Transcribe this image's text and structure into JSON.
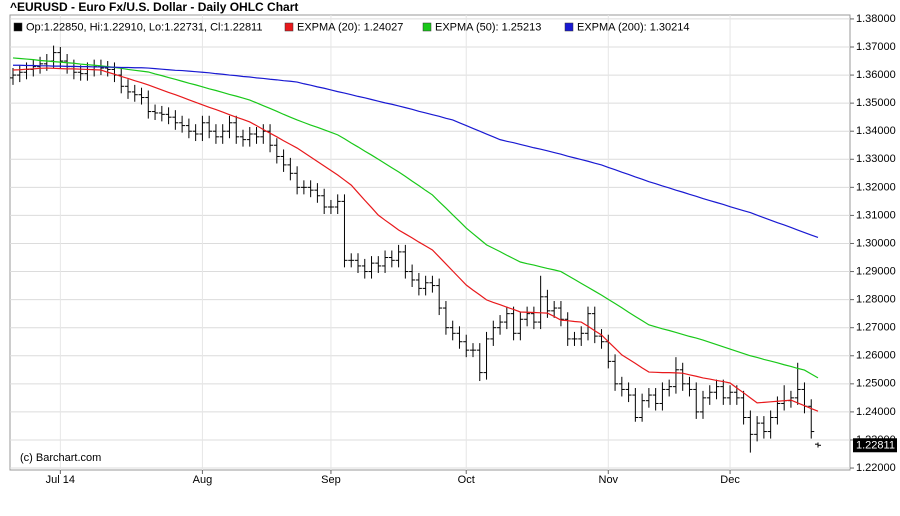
{
  "chart_data": {
    "type": "ohlc",
    "title": "^EURUSD - Euro Fx/U.S. Dollar - Daily OHLC Chart",
    "credit": "(c) Barchart.com",
    "last_label": "1.22811",
    "grid": true,
    "ylim": [
      1.2193,
      1.3814
    ],
    "yticks": [
      {
        "value": 1.22,
        "label": "1.22000"
      },
      {
        "value": 1.23,
        "label": "1.23000"
      },
      {
        "value": 1.24,
        "label": "1.24000"
      },
      {
        "value": 1.25,
        "label": "1.25000"
      },
      {
        "value": 1.26,
        "label": "1.26000"
      },
      {
        "value": 1.27,
        "label": "1.27000"
      },
      {
        "value": 1.28,
        "label": "1.28000"
      },
      {
        "value": 1.29,
        "label": "1.29000"
      },
      {
        "value": 1.3,
        "label": "1.30000"
      },
      {
        "value": 1.31,
        "label": "1.31000"
      },
      {
        "value": 1.32,
        "label": "1.32000"
      },
      {
        "value": 1.33,
        "label": "1.33000"
      },
      {
        "value": 1.34,
        "label": "1.34000"
      },
      {
        "value": 1.35,
        "label": "1.35000"
      },
      {
        "value": 1.36,
        "label": "1.36000"
      },
      {
        "value": 1.37,
        "label": "1.37000"
      },
      {
        "value": 1.38,
        "label": "1.38000"
      }
    ],
    "categories": [
      null,
      null,
      null,
      null,
      null,
      null,
      null,
      "Jul 14",
      null,
      null,
      null,
      null,
      null,
      null,
      null,
      null,
      null,
      null,
      null,
      null,
      null,
      null,
      null,
      null,
      null,
      null,
      null,
      null,
      "Aug",
      null,
      null,
      null,
      null,
      null,
      null,
      null,
      null,
      null,
      null,
      null,
      null,
      null,
      null,
      null,
      null,
      null,
      null,
      "Sep",
      null,
      null,
      null,
      null,
      null,
      null,
      null,
      null,
      null,
      null,
      null,
      null,
      null,
      null,
      null,
      null,
      null,
      null,
      null,
      "Oct",
      null,
      null,
      null,
      null,
      null,
      null,
      null,
      null,
      null,
      null,
      null,
      null,
      null,
      null,
      null,
      null,
      null,
      null,
      null,
      null,
      "Nov",
      null,
      null,
      null,
      null,
      null,
      null,
      null,
      null,
      null,
      null,
      null,
      null,
      null,
      null,
      null,
      null,
      null,
      "Dec",
      null,
      null,
      null,
      null,
      null,
      null,
      null,
      null,
      null,
      null,
      null,
      null,
      null
    ],
    "ohlc": {
      "name": "Op:1.22850, Hi:1.22910, Lo:1.22731, Cl:1.22811",
      "color": "#000000",
      "open": [
        1.359,
        1.36,
        1.361,
        1.362,
        1.363,
        1.364,
        1.365,
        1.368,
        1.365,
        1.363,
        1.361,
        1.3605,
        1.362,
        1.363,
        1.3625,
        1.362,
        1.36,
        1.356,
        1.354,
        1.353,
        1.352,
        1.347,
        1.3465,
        1.346,
        1.345,
        1.343,
        1.342,
        1.34,
        1.339,
        1.343,
        1.34,
        1.338,
        1.34,
        1.343,
        1.338,
        1.337,
        1.339,
        1.338,
        1.34,
        1.335,
        1.331,
        1.328,
        1.325,
        1.32,
        1.32,
        1.319,
        1.317,
        1.313,
        1.313,
        1.315,
        1.294,
        1.294,
        1.292,
        1.29,
        1.293,
        1.292,
        1.295,
        1.294,
        1.297,
        1.29,
        1.287,
        1.284,
        1.286,
        1.285,
        1.277,
        1.27,
        1.268,
        1.265,
        1.262,
        1.262,
        1.254,
        1.266,
        1.27,
        1.272,
        1.275,
        1.268,
        1.273,
        1.275,
        1.272,
        1.281,
        1.276,
        1.277,
        1.273,
        1.266,
        1.266,
        1.268,
        1.275,
        1.267,
        1.265,
        1.258,
        1.25,
        1.248,
        1.246,
        1.238,
        1.244,
        1.246,
        1.243,
        1.248,
        1.249,
        1.255,
        1.25,
        1.248,
        1.24,
        1.245,
        1.247,
        1.249,
        1.245,
        1.247,
        1.245,
        1.238,
        1.232,
        1.236,
        1.233,
        1.238,
        1.243,
        1.244,
        1.245,
        1.248,
        1.242,
        1.2285
      ],
      "high": [
        1.3625,
        1.3635,
        1.3645,
        1.3655,
        1.3665,
        1.3675,
        1.3705,
        1.37,
        1.3675,
        1.3655,
        1.3635,
        1.3645,
        1.3655,
        1.3655,
        1.365,
        1.3645,
        1.3625,
        1.3585,
        1.3565,
        1.3555,
        1.3545,
        1.3495,
        1.349,
        1.3485,
        1.3475,
        1.3455,
        1.3445,
        1.3425,
        1.3455,
        1.3455,
        1.3425,
        1.3425,
        1.3455,
        1.3455,
        1.3405,
        1.3415,
        1.3415,
        1.3425,
        1.3425,
        1.3375,
        1.3335,
        1.3305,
        1.3275,
        1.3225,
        1.3225,
        1.3215,
        1.3195,
        1.3155,
        1.3175,
        1.3175,
        1.2965,
        1.2965,
        1.2945,
        1.2955,
        1.2955,
        1.2975,
        1.2975,
        1.2995,
        1.2995,
        1.2925,
        1.2895,
        1.2885,
        1.2885,
        1.2875,
        1.2795,
        1.2725,
        1.2705,
        1.2675,
        1.2645,
        1.2645,
        1.2685,
        1.2725,
        1.2745,
        1.2775,
        1.2775,
        1.2755,
        1.2775,
        1.2775,
        1.2885,
        1.2835,
        1.2795,
        1.2795,
        1.2755,
        1.2685,
        1.2705,
        1.2775,
        1.2775,
        1.2695,
        1.2675,
        1.2605,
        1.2525,
        1.2505,
        1.2485,
        1.2465,
        1.2485,
        1.2485,
        1.2505,
        1.2515,
        1.2595,
        1.2575,
        1.2525,
        1.2505,
        1.2475,
        1.2495,
        1.2515,
        1.2515,
        1.2495,
        1.2495,
        1.2475,
        1.2405,
        1.2385,
        1.2385,
        1.2405,
        1.2455,
        1.2495,
        1.2475,
        1.2575,
        1.2505,
        1.2445,
        1.2291
      ],
      "low": [
        1.3565,
        1.3575,
        1.3585,
        1.3595,
        1.3605,
        1.3615,
        1.3625,
        1.3625,
        1.3605,
        1.3585,
        1.358,
        1.358,
        1.3595,
        1.36,
        1.3595,
        1.3575,
        1.3535,
        1.3515,
        1.3505,
        1.3495,
        1.3445,
        1.344,
        1.3435,
        1.3425,
        1.3405,
        1.3395,
        1.3375,
        1.3365,
        1.3365,
        1.3375,
        1.3355,
        1.3355,
        1.3375,
        1.3355,
        1.3345,
        1.3345,
        1.3355,
        1.3355,
        1.3325,
        1.3285,
        1.3255,
        1.3225,
        1.3175,
        1.3175,
        1.3165,
        1.3145,
        1.3105,
        1.3105,
        1.3105,
        1.2915,
        1.2915,
        1.2895,
        1.2875,
        1.2875,
        1.2895,
        1.2895,
        1.2915,
        1.2915,
        1.2875,
        1.2845,
        1.2815,
        1.2815,
        1.2825,
        1.2745,
        1.2675,
        1.2655,
        1.2625,
        1.2595,
        1.2595,
        1.251,
        1.2515,
        1.2635,
        1.2675,
        1.2695,
        1.2655,
        1.2655,
        1.2705,
        1.2695,
        1.2695,
        1.2735,
        1.2735,
        1.2705,
        1.2635,
        1.2635,
        1.2635,
        1.2655,
        1.2645,
        1.2625,
        1.2555,
        1.2475,
        1.2455,
        1.2435,
        1.2365,
        1.2365,
        1.2415,
        1.2405,
        1.2405,
        1.2455,
        1.2465,
        1.2475,
        1.2455,
        1.2375,
        1.2375,
        1.2425,
        1.2445,
        1.2425,
        1.2425,
        1.2425,
        1.2355,
        1.2255,
        1.2295,
        1.2305,
        1.2305,
        1.2355,
        1.2405,
        1.2415,
        1.2425,
        1.2395,
        1.2305,
        1.22731
      ],
      "close": [
        1.36,
        1.361,
        1.362,
        1.363,
        1.364,
        1.365,
        1.368,
        1.365,
        1.363,
        1.361,
        1.3605,
        1.362,
        1.363,
        1.3625,
        1.362,
        1.36,
        1.356,
        1.354,
        1.353,
        1.352,
        1.347,
        1.3465,
        1.346,
        1.345,
        1.343,
        1.342,
        1.34,
        1.339,
        1.343,
        1.34,
        1.338,
        1.34,
        1.343,
        1.338,
        1.337,
        1.339,
        1.338,
        1.34,
        1.335,
        1.331,
        1.328,
        1.325,
        1.32,
        1.32,
        1.319,
        1.317,
        1.313,
        1.313,
        1.315,
        1.294,
        1.294,
        1.292,
        1.29,
        1.293,
        1.292,
        1.295,
        1.294,
        1.297,
        1.29,
        1.287,
        1.284,
        1.286,
        1.285,
        1.277,
        1.27,
        1.268,
        1.265,
        1.262,
        1.262,
        1.254,
        1.266,
        1.27,
        1.272,
        1.275,
        1.268,
        1.273,
        1.275,
        1.272,
        1.281,
        1.276,
        1.277,
        1.273,
        1.266,
        1.266,
        1.268,
        1.275,
        1.267,
        1.265,
        1.258,
        1.25,
        1.248,
        1.246,
        1.238,
        1.244,
        1.246,
        1.243,
        1.248,
        1.249,
        1.255,
        1.25,
        1.248,
        1.24,
        1.245,
        1.247,
        1.249,
        1.245,
        1.247,
        1.245,
        1.238,
        1.232,
        1.236,
        1.233,
        1.238,
        1.243,
        1.244,
        1.245,
        1.248,
        1.242,
        1.233,
        1.22811
      ]
    },
    "series": [
      {
        "name": "EXPMA (20): 1.24027",
        "color": "#e8191c",
        "values": [
          1.3618,
          1.3619,
          1.3621,
          1.3622,
          1.3624,
          1.3625,
          1.3624,
          1.3623,
          1.3622,
          1.3622,
          1.3621,
          1.362,
          1.3619,
          1.3618,
          1.361,
          1.3603,
          1.3595,
          1.3588,
          1.358,
          1.3573,
          1.3565,
          1.3556,
          1.3547,
          1.3538,
          1.353,
          1.3521,
          1.3512,
          1.3503,
          1.3494,
          1.3485,
          1.3477,
          1.3468,
          1.3459,
          1.345,
          1.3442,
          1.3433,
          1.342,
          1.3406,
          1.3393,
          1.338,
          1.3366,
          1.3353,
          1.334,
          1.3324,
          1.3308,
          1.3292,
          1.3276,
          1.326,
          1.3244,
          1.3226,
          1.3208,
          1.3181,
          1.3154,
          1.3128,
          1.3101,
          1.3083,
          1.3066,
          1.3048,
          1.3034,
          1.302,
          1.3005,
          1.2991,
          1.2977,
          1.2952,
          1.2927,
          1.2902,
          1.2877,
          1.2852,
          1.2834,
          1.2817,
          1.2799,
          1.279,
          1.2782,
          1.2773,
          1.2765,
          1.2756,
          1.2755,
          1.2754,
          1.2753,
          1.2752,
          1.274,
          1.2727,
          1.2725,
          1.2722,
          1.272,
          1.2705,
          1.2689,
          1.2674,
          1.265,
          1.2627,
          1.2603,
          1.2588,
          1.2573,
          1.2557,
          1.2542,
          1.2541,
          1.254,
          1.254,
          1.2539,
          1.2538,
          1.2532,
          1.2527,
          1.2521,
          1.2517,
          1.2512,
          1.2508,
          1.2503,
          1.2485,
          1.2468,
          1.245,
          1.2432,
          1.2434,
          1.2436,
          1.2438,
          1.244,
          1.2442,
          1.2432,
          1.2422,
          1.2412,
          1.24027
        ]
      },
      {
        "name": "EXPMA (50): 1.25213",
        "color": "#19c819",
        "values": [
          1.3661,
          1.3659,
          1.3657,
          1.3655,
          1.3652,
          1.365,
          1.3648,
          1.3646,
          1.3644,
          1.3642,
          1.3639,
          1.3637,
          1.3635,
          1.3633,
          1.363,
          1.3627,
          1.3624,
          1.362,
          1.3617,
          1.3614,
          1.3611,
          1.3604,
          1.3598,
          1.3591,
          1.3585,
          1.3578,
          1.3571,
          1.3565,
          1.3558,
          1.3551,
          1.3545,
          1.3538,
          1.3531,
          1.3525,
          1.3518,
          1.3511,
          1.3501,
          1.3491,
          1.3481,
          1.3471,
          1.346,
          1.345,
          1.344,
          1.3431,
          1.3422,
          1.3414,
          1.3405,
          1.3396,
          1.3387,
          1.3373,
          1.3358,
          1.3344,
          1.3329,
          1.3315,
          1.33,
          1.3285,
          1.327,
          1.3255,
          1.3239,
          1.3222,
          1.3206,
          1.3189,
          1.3173,
          1.3149,
          1.3126,
          1.3102,
          1.3079,
          1.3055,
          1.3035,
          1.3015,
          1.2995,
          1.2983,
          1.2971,
          1.2958,
          1.2946,
          1.2934,
          1.2928,
          1.2923,
          1.2917,
          1.2911,
          1.2906,
          1.29,
          1.2886,
          1.2872,
          1.2858,
          1.2844,
          1.283,
          1.2816,
          1.2801,
          1.2786,
          1.2771,
          1.2755,
          1.274,
          1.2725,
          1.271,
          1.2703,
          1.2696,
          1.269,
          1.2683,
          1.2676,
          1.2669,
          1.2663,
          1.2656,
          1.2648,
          1.264,
          1.2632,
          1.2624,
          1.2616,
          1.2608,
          1.26,
          1.2594,
          1.2587,
          1.2581,
          1.2575,
          1.2568,
          1.2562,
          1.2555,
          1.2549,
          1.2535,
          1.25213
        ]
      },
      {
        "name": "EXPMA (200): 1.30214",
        "color": "#1919d2",
        "values": [
          1.3635,
          1.3635,
          1.3634,
          1.3634,
          1.3633,
          1.3633,
          1.3632,
          1.3632,
          1.3631,
          1.3631,
          1.363,
          1.363,
          1.3629,
          1.3629,
          1.3628,
          1.3628,
          1.3627,
          1.3627,
          1.3626,
          1.3626,
          1.3625,
          1.3623,
          1.3621,
          1.3619,
          1.3617,
          1.3616,
          1.3614,
          1.3612,
          1.361,
          1.3608,
          1.3605,
          1.3603,
          1.36,
          1.3598,
          1.3595,
          1.3593,
          1.359,
          1.3588,
          1.3585,
          1.3583,
          1.358,
          1.3578,
          1.3575,
          1.3569,
          1.3564,
          1.3558,
          1.3553,
          1.3547,
          1.3541,
          1.3536,
          1.353,
          1.3524,
          1.3519,
          1.3513,
          1.3507,
          1.3501,
          1.3496,
          1.349,
          1.3484,
          1.3478,
          1.3471,
          1.3465,
          1.3459,
          1.3453,
          1.3446,
          1.344,
          1.343,
          1.342,
          1.341,
          1.34,
          1.339,
          1.338,
          1.337,
          1.3364,
          1.3359,
          1.3353,
          1.3347,
          1.3341,
          1.3336,
          1.333,
          1.3324,
          1.3318,
          1.3311,
          1.3305,
          1.3299,
          1.3293,
          1.3286,
          1.328,
          1.3271,
          1.3263,
          1.3254,
          1.3246,
          1.3237,
          1.3229,
          1.322,
          1.3213,
          1.3205,
          1.3198,
          1.319,
          1.3183,
          1.3175,
          1.3168,
          1.316,
          1.3153,
          1.3146,
          1.3139,
          1.3131,
          1.3124,
          1.3117,
          1.311,
          1.3101,
          1.3092,
          1.3083,
          1.3074,
          1.3066,
          1.3057,
          1.3048,
          1.3039,
          1.303,
          1.30214
        ]
      }
    ]
  }
}
